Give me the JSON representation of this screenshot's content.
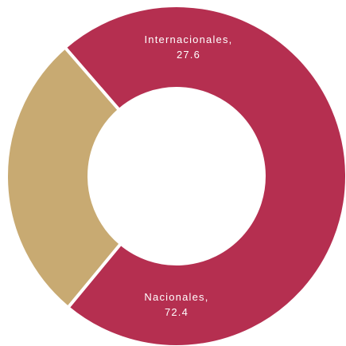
{
  "chart_data": {
    "type": "pie",
    "donut": true,
    "title": "",
    "slices": [
      {
        "label": "Nacionales",
        "value": 72.4,
        "label_line1": "Nacionales,",
        "label_line2": "72.4",
        "color": "#b52f50"
      },
      {
        "label": "Internacionales",
        "value": 27.6,
        "label_line1": "Internacionales,",
        "label_line2": "27.6",
        "color": "#c8aa72"
      }
    ],
    "separator_color": "#ffffff",
    "legend": "none"
  }
}
